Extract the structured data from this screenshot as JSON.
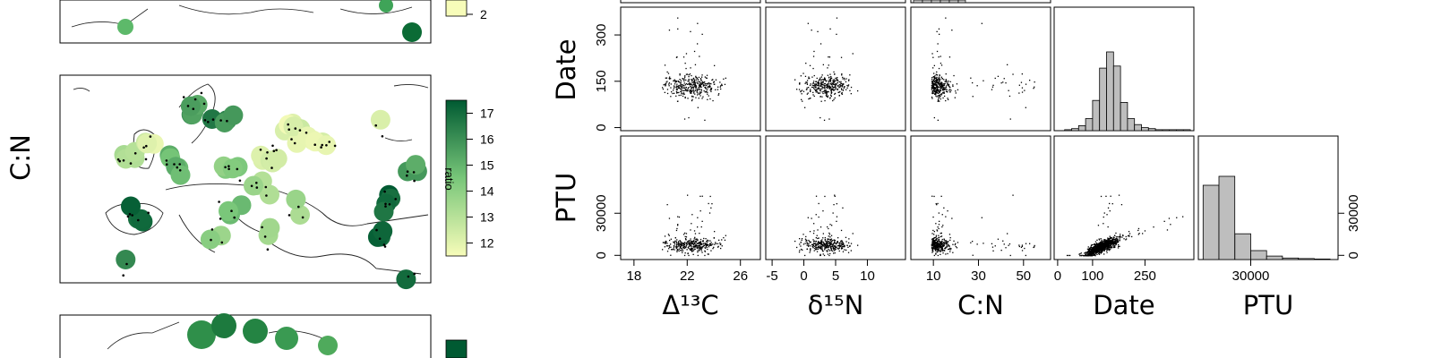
{
  "left_panel": {
    "row_label": "C:N",
    "top_legend_value": "2",
    "legend_title": "ratio",
    "legend_ticks": [
      "12",
      "13",
      "14",
      "15",
      "16",
      "17"
    ],
    "legend_range": [
      11.5,
      17.5
    ],
    "colors": {
      "low": "#f7fcb9",
      "mid": "#78c679",
      "high": "#005a32"
    }
  },
  "chart_data": {
    "type": "scatter",
    "variables": [
      "Δ¹³C",
      "δ¹⁵N",
      "C:N",
      "Date",
      "PTU"
    ],
    "rows_visible": [
      "Date",
      "PTU"
    ],
    "axis_ticks": {
      "Δ13C": [
        "18",
        "22",
        "26"
      ],
      "δ15N": [
        "-5",
        "0",
        "5",
        "10"
      ],
      "C:N": [
        "10",
        "30",
        "50"
      ],
      "Date": [
        "0",
        "100",
        "250"
      ],
      "PTU": [
        "30000"
      ],
      "Date_y": [
        "0",
        "150",
        "300"
      ],
      "PTU_y": [
        "0",
        "30000"
      ]
    },
    "ranges": {
      "Δ13C": [
        17,
        27.5
      ],
      "δ15N": [
        -6,
        16
      ],
      "C:N": [
        0,
        62
      ],
      "Date": [
        -10,
        390
      ],
      "PTU": [
        -3000,
        85000
      ]
    },
    "date_histogram": {
      "bin_width": 20,
      "bin_starts": [
        20,
        40,
        60,
        80,
        100,
        120,
        140,
        160,
        180,
        200,
        220,
        240,
        260,
        280,
        300,
        320,
        340,
        360
      ],
      "counts": [
        1,
        2,
        5,
        12,
        30,
        62,
        78,
        64,
        28,
        12,
        6,
        3,
        2,
        1,
        1,
        1,
        1,
        1
      ]
    },
    "ptu_histogram": {
      "bin_width": 10000,
      "bin_starts": [
        0,
        10000,
        20000,
        30000,
        40000,
        50000,
        60000,
        70000
      ],
      "counts": [
        150,
        168,
        52,
        18,
        7,
        3,
        2,
        1
      ]
    }
  }
}
